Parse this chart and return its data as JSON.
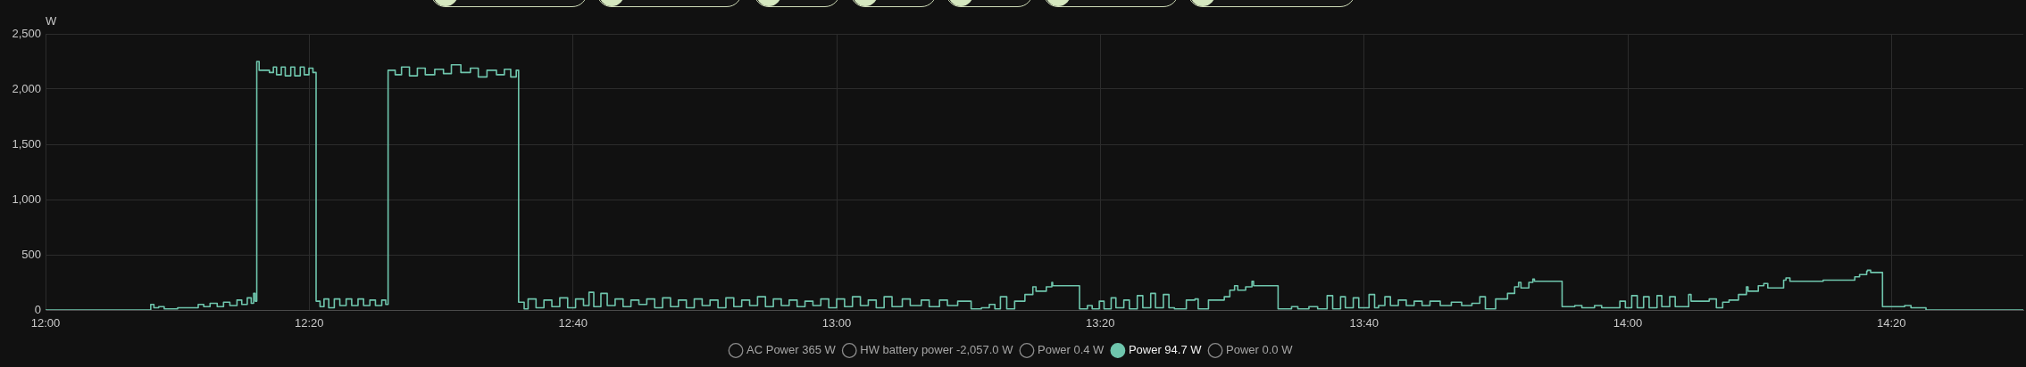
{
  "chart_data": {
    "type": "step",
    "ylabel": "W",
    "xlim": [
      12,
      14.5
    ],
    "ylim": [
      0,
      2500
    ],
    "xticks": [
      {
        "value": 12,
        "label": "12:00"
      },
      {
        "value": 12.3333,
        "label": "12:20"
      },
      {
        "value": 12.6667,
        "label": "12:40"
      },
      {
        "value": 13,
        "label": "13:00"
      },
      {
        "value": 13.3333,
        "label": "13:20"
      },
      {
        "value": 13.6667,
        "label": "13:40"
      },
      {
        "value": 14,
        "label": "14:00"
      },
      {
        "value": 14.3333,
        "label": "14:20"
      }
    ],
    "yticks": [
      0,
      500,
      {
        "value": 1000,
        "label": "1,000"
      },
      {
        "value": 1500,
        "label": "1,500"
      },
      {
        "value": 2000,
        "label": "2,000"
      },
      {
        "value": 2500,
        "label": "2,500"
      }
    ],
    "grid": true,
    "legend": "bottom",
    "x": [
      12,
      12.133,
      12.137,
      12.143,
      12.15,
      12.167,
      12.193,
      12.2,
      12.208,
      12.217,
      12.225,
      12.233,
      12.242,
      12.248,
      12.255,
      12.26,
      12.263,
      12.265,
      12.267,
      12.27,
      12.283,
      12.288,
      12.292,
      12.298,
      12.303,
      12.31,
      12.315,
      12.322,
      12.327,
      12.333,
      12.338,
      12.342,
      12.347,
      12.352,
      12.358,
      12.365,
      12.372,
      12.38,
      12.387,
      12.395,
      12.402,
      12.41,
      12.417,
      12.425,
      12.43,
      12.433,
      12.442,
      12.45,
      12.46,
      12.47,
      12.48,
      12.492,
      12.503,
      12.513,
      12.525,
      12.537,
      12.547,
      12.558,
      12.57,
      12.58,
      12.588,
      12.595,
      12.598,
      12.605,
      12.61,
      12.62,
      12.63,
      12.64,
      12.65,
      12.66,
      12.67,
      12.68,
      12.687,
      12.693,
      12.702,
      12.71,
      12.72,
      12.73,
      12.74,
      12.75,
      12.76,
      12.77,
      12.78,
      12.79,
      12.8,
      12.81,
      12.82,
      12.83,
      12.84,
      12.85,
      12.86,
      12.87,
      12.88,
      12.89,
      12.9,
      12.91,
      12.92,
      12.93,
      12.94,
      12.95,
      12.96,
      12.97,
      12.98,
      12.99,
      13,
      13.01,
      13.02,
      13.03,
      13.04,
      13.05,
      13.06,
      13.07,
      13.083,
      13.093,
      13.107,
      13.117,
      13.13,
      13.14,
      13.153,
      13.17,
      13.183,
      13.193,
      13.2,
      13.207,
      13.215,
      13.225,
      13.238,
      13.248,
      13.252,
      13.265,
      13.272,
      13.273,
      13.307,
      13.317,
      13.323,
      13.332,
      13.338,
      13.347,
      13.353,
      13.363,
      13.37,
      13.38,
      13.387,
      13.397,
      13.403,
      13.413,
      13.42,
      13.427,
      13.442,
      13.453,
      13.457,
      13.47,
      13.478,
      13.49,
      13.497,
      13.503,
      13.507,
      13.517,
      13.525,
      13.527,
      13.558,
      13.575,
      13.583,
      13.597,
      13.608,
      13.62,
      13.627,
      13.637,
      13.643,
      13.653,
      13.66,
      13.673,
      13.68,
      13.685,
      13.693,
      13.7,
      13.71,
      13.72,
      13.73,
      13.74,
      13.75,
      13.763,
      13.777,
      13.79,
      13.803,
      13.813,
      13.82,
      13.833,
      13.848,
      13.857,
      13.862,
      13.865,
      13.875,
      13.88,
      13.882,
      13.917,
      13.933,
      13.942,
      13.958,
      13.967,
      13.99,
      13.997,
      14.005,
      14.012,
      14.02,
      14.027,
      14.037,
      14.043,
      14.053,
      14.06,
      14.067,
      14.077,
      14.08,
      14.092,
      14.103,
      14.112,
      14.12,
      14.128,
      14.14,
      14.15,
      14.152,
      14.165,
      14.172,
      14.177,
      14.197,
      14.2,
      14.205,
      14.247,
      14.287,
      14.293,
      14.302,
      14.303,
      14.307,
      14.322,
      14.35,
      14.358,
      14.377,
      14.5
    ],
    "series": [
      {
        "name": "AC Power 365 W",
        "color": "#8c8c8c",
        "values": [
          null,
          null,
          null,
          null,
          null,
          null,
          null,
          null,
          null,
          null,
          null,
          null,
          null,
          null,
          null,
          null,
          null,
          null,
          null,
          null,
          null,
          null,
          null,
          null,
          null,
          null,
          null,
          null,
          null,
          null,
          null,
          null,
          null,
          null,
          null,
          null,
          null,
          null,
          null,
          null,
          null,
          null,
          null,
          null,
          null,
          null,
          null,
          null,
          null,
          null,
          null,
          null,
          null,
          null,
          null,
          null,
          null,
          null,
          null,
          null,
          null,
          null,
          null,
          null,
          null,
          null,
          null,
          null,
          null,
          null,
          null,
          null,
          null,
          null,
          null,
          null,
          null,
          null,
          null,
          null,
          null,
          null,
          null,
          null,
          null,
          null,
          null,
          null,
          null,
          null,
          null,
          null,
          null,
          null,
          null,
          null,
          null,
          null,
          null,
          null,
          null,
          null,
          null,
          null,
          null,
          null,
          null,
          null,
          null,
          null,
          null,
          null,
          null,
          null,
          null,
          null,
          null,
          null,
          null,
          null,
          null,
          null,
          null,
          null,
          null,
          null,
          null,
          null,
          null,
          null,
          null,
          null,
          null,
          null,
          null,
          null,
          null,
          null,
          null,
          null,
          null,
          null,
          null,
          null,
          null,
          null,
          null,
          null,
          null,
          null,
          null,
          null,
          null,
          null,
          null,
          null,
          null,
          null,
          null,
          null,
          null,
          null,
          null,
          null,
          null,
          null,
          null,
          null,
          null,
          null,
          null,
          null,
          null,
          null,
          null,
          null,
          null,
          null,
          null,
          null,
          null,
          null,
          null,
          null,
          null,
          null,
          null,
          null,
          null,
          null,
          null,
          null,
          null,
          null,
          null,
          null,
          null,
          null,
          null,
          null,
          null,
          null,
          null,
          null,
          null,
          null,
          null,
          null,
          null,
          null,
          null,
          null,
          null,
          null,
          null,
          null,
          null,
          null,
          null,
          null,
          null,
          null,
          null,
          null,
          null,
          null,
          null,
          null,
          null,
          null,
          null,
          null,
          null,
          null,
          null,
          null,
          null,
          null
        ]
      },
      {
        "name": "HW battery power -2,057.0 W",
        "color": "#8c8c8c",
        "values": [
          null,
          null,
          null,
          null,
          null,
          null,
          null,
          null,
          null,
          null,
          null,
          null,
          null,
          null,
          null,
          null,
          null,
          null,
          null,
          null,
          null,
          null,
          null,
          null,
          null,
          null,
          null,
          null,
          null,
          null,
          null,
          null,
          null,
          null,
          null,
          null,
          null,
          null,
          null,
          null,
          null,
          null,
          null,
          null,
          null,
          null,
          null,
          null,
          null,
          null,
          null,
          null,
          null,
          null,
          null,
          null,
          null,
          null,
          null,
          null,
          null,
          null,
          null,
          null,
          null,
          null,
          null,
          null,
          null,
          null,
          null,
          null,
          null,
          null,
          null,
          null,
          null,
          null,
          null,
          null,
          null,
          null,
          null,
          null,
          null,
          null,
          null,
          null,
          null,
          null,
          null,
          null,
          null,
          null,
          null,
          null,
          null,
          null,
          null,
          null,
          null,
          null,
          null,
          null,
          null,
          null,
          null,
          null,
          null,
          null,
          null,
          null,
          null,
          null,
          null,
          null,
          null,
          null,
          null,
          null,
          null,
          null,
          null,
          null,
          null,
          null,
          null,
          null,
          null,
          null,
          null,
          null,
          null,
          null,
          null,
          null,
          null,
          null,
          null,
          null,
          null,
          null,
          null,
          null,
          null,
          null,
          null,
          null,
          null,
          null,
          null,
          null,
          null,
          null,
          null,
          null,
          null,
          null,
          null,
          null,
          null,
          null,
          null,
          null,
          null,
          null,
          null,
          null,
          null,
          null,
          null,
          null,
          null,
          null,
          null,
          null,
          null,
          null,
          null,
          null,
          null,
          null,
          null,
          null,
          null,
          null,
          null,
          null,
          null,
          null,
          null,
          null,
          null,
          null,
          null,
          null,
          null,
          null,
          null,
          null,
          null,
          null,
          null,
          null,
          null,
          null,
          null,
          null,
          null,
          null,
          null,
          null,
          null,
          null,
          null,
          null,
          null,
          null,
          null,
          null,
          null,
          null,
          null,
          null,
          null,
          null,
          null,
          null,
          null,
          null,
          null,
          null,
          null,
          null,
          null,
          null,
          null,
          null
        ]
      },
      {
        "name": "Power 0.4 W",
        "color": "#8c8c8c",
        "values": [
          null,
          null,
          null,
          null,
          null,
          null,
          null,
          null,
          null,
          null,
          null,
          null,
          null,
          null,
          null,
          null,
          null,
          null,
          null,
          null,
          null,
          null,
          null,
          null,
          null,
          null,
          null,
          null,
          null,
          null,
          null,
          null,
          null,
          null,
          null,
          null,
          null,
          null,
          null,
          null,
          null,
          null,
          null,
          null,
          null,
          null,
          null,
          null,
          null,
          null,
          null,
          null,
          null,
          null,
          null,
          null,
          null,
          null,
          null,
          null,
          null,
          null,
          null,
          null,
          null,
          null,
          null,
          null,
          null,
          null,
          null,
          null,
          null,
          null,
          null,
          null,
          null,
          null,
          null,
          null,
          null,
          null,
          null,
          null,
          null,
          null,
          null,
          null,
          null,
          null,
          null,
          null,
          null,
          null,
          null,
          null,
          null,
          null,
          null,
          null,
          null,
          null,
          null,
          null,
          null,
          null,
          null,
          null,
          null,
          null,
          null,
          null,
          null,
          null,
          null,
          null,
          null,
          null,
          null,
          null,
          null,
          null,
          null,
          null,
          null,
          null,
          null,
          null,
          null,
          null,
          null,
          null,
          null,
          null,
          null,
          null,
          null,
          null,
          null,
          null,
          null,
          null,
          null,
          null,
          null,
          null,
          null,
          null,
          null,
          null,
          null,
          null,
          null,
          null,
          null,
          null,
          null,
          null,
          null,
          null,
          null,
          null,
          null,
          null,
          null,
          null,
          null,
          null,
          null,
          null,
          null,
          null,
          null,
          null,
          null,
          null,
          null,
          null,
          null,
          null,
          null,
          null,
          null,
          null,
          null,
          null,
          null,
          null,
          null,
          null,
          null,
          null,
          null,
          null,
          null,
          null,
          null,
          null,
          null,
          null,
          null,
          null,
          null,
          null,
          null,
          null,
          null,
          null,
          null,
          null,
          null,
          null,
          null,
          null,
          null,
          null,
          null,
          null,
          null,
          null,
          null,
          null,
          null,
          null,
          null,
          null,
          null,
          null,
          null,
          null,
          null,
          null,
          null,
          null,
          null,
          null,
          null,
          null
        ]
      },
      {
        "name": "Power 94.7 W",
        "color": "#6fc6ad",
        "values": [
          0,
          50,
          20,
          30,
          10,
          20,
          50,
          30,
          60,
          30,
          70,
          40,
          90,
          50,
          110,
          60,
          150,
          80,
          2250,
          2170,
          2150,
          2200,
          2130,
          2200,
          2120,
          2200,
          2120,
          2200,
          2130,
          2190,
          2150,
          80,
          30,
          100,
          20,
          100,
          40,
          100,
          40,
          100,
          40,
          90,
          40,
          90,
          50,
          2170,
          2130,
          2200,
          2120,
          2190,
          2130,
          2180,
          2140,
          2220,
          2150,
          2190,
          2110,
          2170,
          2130,
          2180,
          2110,
          2170,
          70,
          10,
          100,
          20,
          90,
          30,
          110,
          20,
          100,
          40,
          160,
          30,
          150,
          40,
          100,
          30,
          90,
          50,
          100,
          20,
          110,
          30,
          90,
          20,
          100,
          40,
          90,
          20,
          110,
          30,
          90,
          40,
          120,
          30,
          100,
          40,
          90,
          30,
          80,
          40,
          100,
          20,
          100,
          30,
          120,
          40,
          90,
          20,
          120,
          30,
          100,
          40,
          90,
          30,
          90,
          40,
          80,
          10,
          20,
          50,
          10,
          120,
          10,
          80,
          140,
          210,
          170,
          210,
          250,
          220,
          10,
          40,
          10,
          80,
          10,
          110,
          20,
          90,
          10,
          130,
          20,
          150,
          20,
          140,
          20,
          10,
          90,
          100,
          10,
          90,
          90,
          120,
          180,
          220,
          180,
          210,
          260,
          220,
          10,
          30,
          10,
          30,
          10,
          130,
          10,
          120,
          20,
          110,
          20,
          140,
          20,
          40,
          120,
          40,
          90,
          40,
          80,
          40,
          80,
          40,
          70,
          40,
          60,
          120,
          10,
          100,
          150,
          210,
          250,
          200,
          250,
          280,
          260,
          30,
          40,
          20,
          40,
          20,
          80,
          20,
          130,
          20,
          120,
          20,
          130,
          30,
          120,
          30,
          30,
          140,
          80,
          80,
          100,
          20,
          70,
          90,
          140,
          210,
          170,
          220,
          240,
          200,
          270,
          290,
          260,
          270,
          300,
          320,
          350,
          360,
          340,
          30,
          40,
          20,
          0,
          0
        ]
      },
      {
        "name": "Power 0.0 W",
        "color": "#8c8c8c",
        "values": [
          null,
          null,
          null,
          null,
          null,
          null,
          null,
          null,
          null,
          null,
          null,
          null,
          null,
          null,
          null,
          null,
          null,
          null,
          null,
          null,
          null,
          null,
          null,
          null,
          null,
          null,
          null,
          null,
          null,
          null,
          null,
          null,
          null,
          null,
          null,
          null,
          null,
          null,
          null,
          null,
          null,
          null,
          null,
          null,
          null,
          null,
          null,
          null,
          null,
          null,
          null,
          null,
          null,
          null,
          null,
          null,
          null,
          null,
          null,
          null,
          null,
          null,
          null,
          null,
          null,
          null,
          null,
          null,
          null,
          null,
          null,
          null,
          null,
          null,
          null,
          null,
          null,
          null,
          null,
          null,
          null,
          null,
          null,
          null,
          null,
          null,
          null,
          null,
          null,
          null,
          null,
          null,
          null,
          null,
          null,
          null,
          null,
          null,
          null,
          null,
          null,
          null,
          null,
          null,
          null,
          null,
          null,
          null,
          null,
          null,
          null,
          null,
          null,
          null,
          null,
          null,
          null,
          null,
          null,
          null,
          null,
          null,
          null,
          null,
          null,
          null,
          null,
          null,
          null,
          null,
          null,
          null,
          null,
          null,
          null,
          null,
          null,
          null,
          null,
          null,
          null,
          null,
          null,
          null,
          null,
          null,
          null,
          null,
          null,
          null,
          null,
          null,
          null,
          null,
          null,
          null,
          null,
          null,
          null,
          null,
          null,
          null,
          null,
          null,
          null,
          null,
          null,
          null,
          null,
          null,
          null,
          null,
          null,
          null,
          null,
          null,
          null,
          null,
          null,
          null,
          null,
          null,
          null,
          null,
          null,
          null,
          null,
          null,
          null,
          null,
          null,
          null,
          null,
          null,
          null,
          null,
          null,
          null,
          null,
          null,
          null,
          null,
          null,
          null,
          null,
          null,
          null,
          null,
          null,
          null,
          null,
          null,
          null,
          null,
          null,
          null,
          null,
          null,
          null,
          null,
          null,
          null,
          null,
          null,
          null,
          null,
          null,
          null,
          null,
          null,
          null,
          null,
          null,
          null,
          null,
          null,
          null,
          null
        ]
      }
    ]
  }
}
